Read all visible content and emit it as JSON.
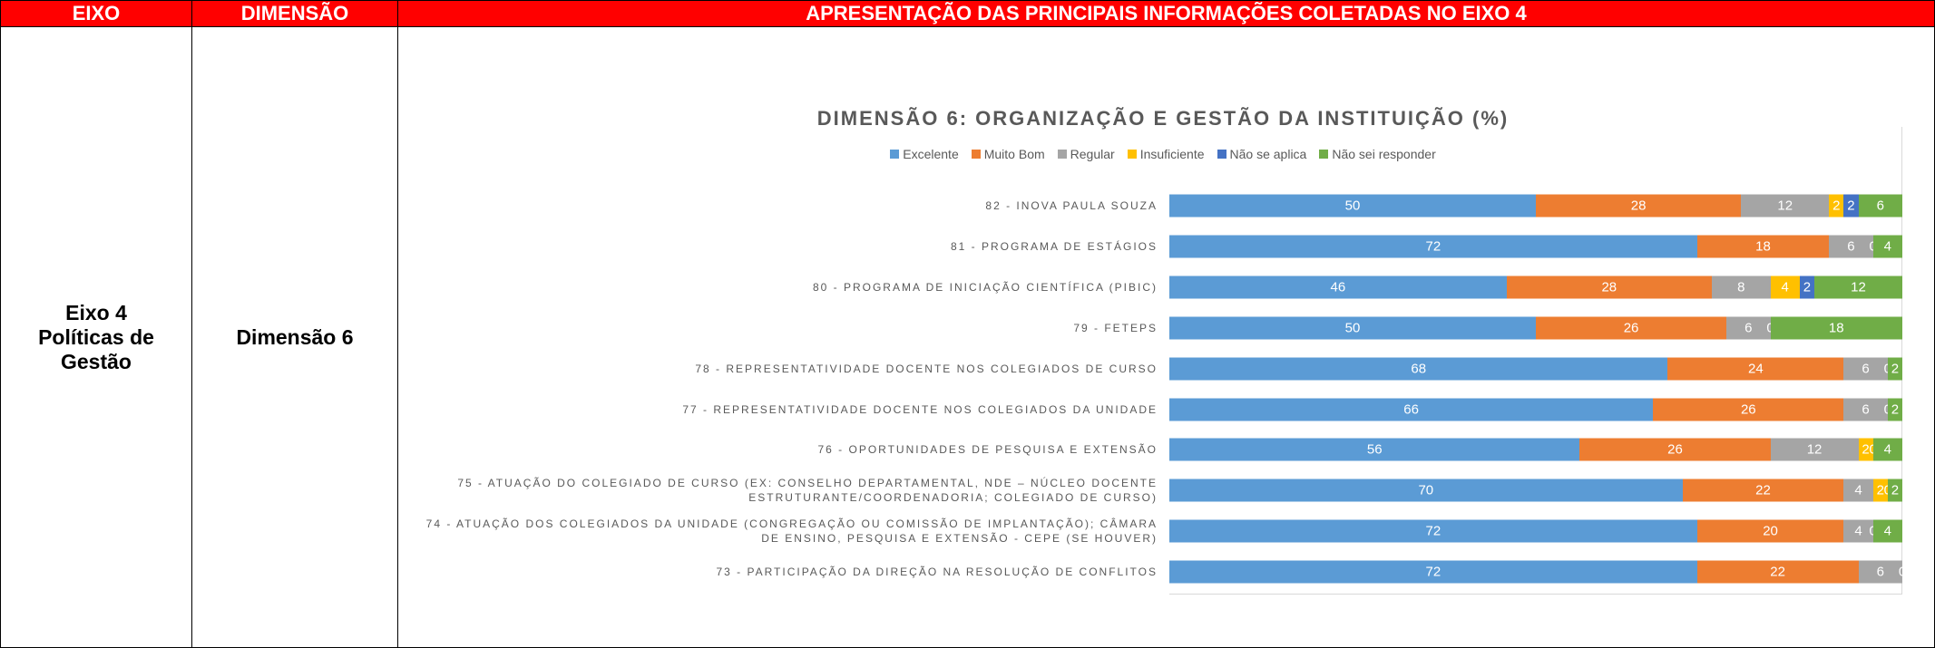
{
  "table": {
    "header": [
      "EIXO",
      "DIMENSÃO",
      "APRESENTAÇÃO DAS PRINCIPAIS INFORMAÇÕES COLETADAS NO EIXO 4"
    ],
    "eixo": [
      "Eixo 4",
      "Políticas de Gestão"
    ],
    "dimensao": "Dimensão 6"
  },
  "chart_data": {
    "type": "stacked-barh",
    "title": "DIMENSÃO 6: ORGANIZAÇÃO E GESTÃO DA INSTITUIÇÃO (%)",
    "categories": [
      "82 - INOVA PAULA SOUZA",
      "81 - PROGRAMA DE ESTÁGIOS",
      "80 - PROGRAMA DE INICIAÇÃO CIENTÍFICA (PIBIC)",
      "79 - FETEPS",
      "78 - REPRESENTATIVIDADE DOCENTE NOS COLEGIADOS DE CURSO",
      "77 - REPRESENTATIVIDADE DOCENTE NOS COLEGIADOS DA UNIDADE",
      "76 - OPORTUNIDADES DE PESQUISA E EXTENSÃO",
      "75 - ATUAÇÃO DO COLEGIADO DE CURSO (EX: CONSELHO DEPARTAMENTAL, NDE – NÚCLEO DOCENTE ESTRUTURANTE/COORDENADORIA; COLEGIADO DE CURSO)",
      "74 - ATUAÇÃO DOS COLEGIADOS DA UNIDADE (CONGREGAÇÃO OU COMISSÃO DE IMPLANTAÇÃO); CÂMARA DE ENSINO, PESQUISA E EXTENSÃO - CEPE (SE HOUVER)",
      "73 - PARTICIPAÇÃO DA DIREÇÃO NA RESOLUÇÃO DE CONFLITOS"
    ],
    "series": [
      {
        "name": "Excelente",
        "color": "#5b9bd5",
        "values": [
          50,
          72,
          46,
          50,
          68,
          66,
          56,
          70,
          72,
          72
        ]
      },
      {
        "name": "Muito Bom",
        "color": "#ed7d31",
        "values": [
          28,
          18,
          28,
          26,
          24,
          26,
          26,
          22,
          20,
          22
        ]
      },
      {
        "name": "Regular",
        "color": "#a5a5a5",
        "values": [
          12,
          6,
          8,
          6,
          6,
          6,
          12,
          4,
          4,
          6
        ]
      },
      {
        "name": "Insuficiente",
        "color": "#ffc000",
        "values": [
          2,
          0,
          4,
          0,
          0,
          0,
          2,
          2,
          0,
          0
        ]
      },
      {
        "name": "Não se aplica",
        "color": "#4472c4",
        "values": [
          2,
          null,
          2,
          null,
          null,
          null,
          0,
          0,
          null,
          null
        ]
      },
      {
        "name": "Não sei responder",
        "color": "#70ad47",
        "values": [
          6,
          4,
          12,
          18,
          2,
          2,
          4,
          2,
          4,
          null
        ]
      }
    ],
    "xlim": [
      0,
      100
    ]
  }
}
